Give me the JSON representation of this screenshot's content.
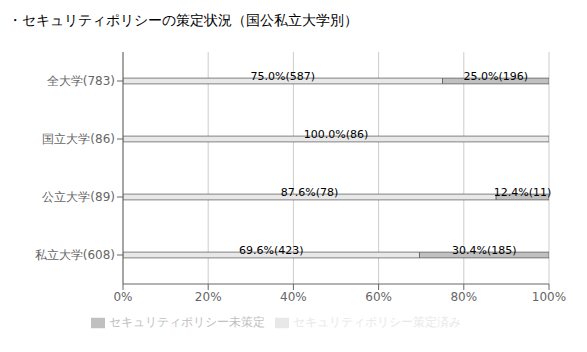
{
  "chart_data": {
    "type": "bar",
    "title": "・セキュリティポリシーの策定状況（国公私立大学別）",
    "orientation": "horizontal",
    "stacked": true,
    "data_labels": true,
    "grid": true,
    "legend": "bottom",
    "categories": [
      "全大学(783)",
      "国立大学(86)",
      "公立大学(89)",
      "私立大学(608)"
    ],
    "series": [
      {
        "name": "セキュリティポリシー策定済み",
        "color": "#e8e8e8",
        "values": [
          75.0,
          100.0,
          87.6,
          69.6
        ],
        "value_labels": [
          "75.0%(587)",
          "100.0%(86)",
          "87.6%(78)",
          "69.6%(423)"
        ]
      },
      {
        "name": "セキュリティポリシー未策定",
        "color": "#c0c0c0",
        "values": [
          25.0,
          0.0,
          12.4,
          30.4
        ],
        "value_labels": [
          "25.0%(196)",
          null,
          "12.4%(11)",
          "30.4%(185)"
        ]
      }
    ],
    "xlim": [
      0,
      100
    ],
    "xticks": [
      {
        "value": 0,
        "label": "0%"
      },
      {
        "value": 20,
        "label": "20%"
      },
      {
        "value": 40,
        "label": "40%"
      },
      {
        "value": 60,
        "label": "60%"
      },
      {
        "value": 80,
        "label": "80%"
      },
      {
        "value": 100,
        "label": "100%"
      }
    ]
  }
}
